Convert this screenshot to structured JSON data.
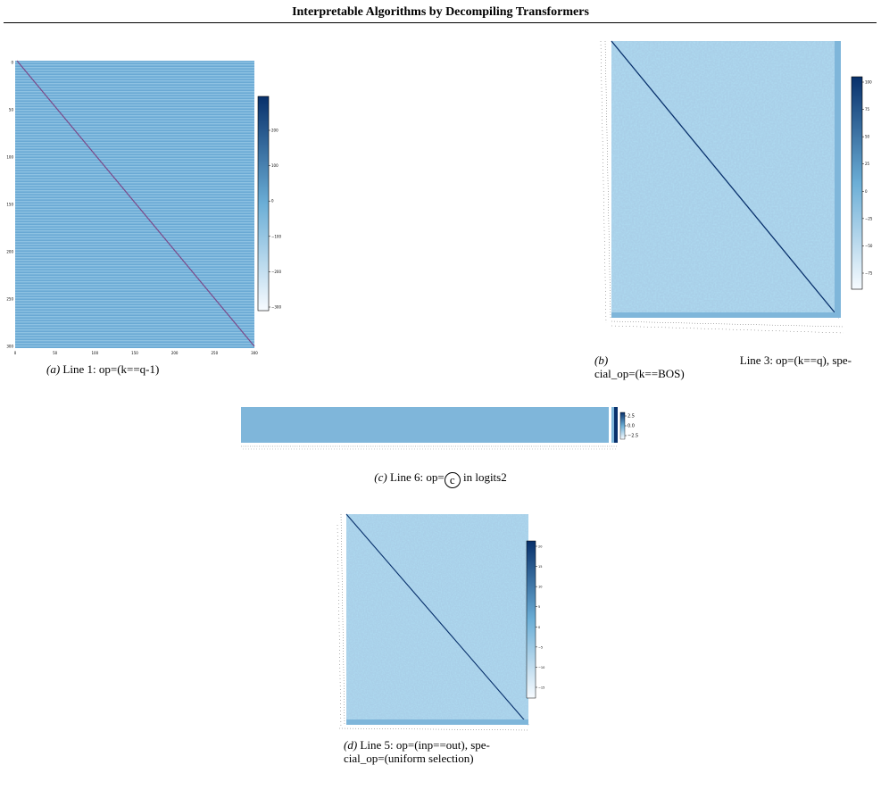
{
  "header": {
    "title": "Interpretable Algorithms by Decompiling Transformers"
  },
  "figures": {
    "a": {
      "caption_label": "(a)",
      "caption_text": "Line 1: op=(k==q-1)",
      "colorbar_ticks": [
        "200",
        "100",
        "0",
        "−100",
        "−200",
        "−300"
      ],
      "y_ticks": [
        "0",
        "50",
        "100",
        "150",
        "200",
        "250",
        "300"
      ],
      "x_ticks": [
        "0",
        "50",
        "100",
        "150",
        "200",
        "250",
        "300"
      ]
    },
    "b": {
      "caption_label": "(b)",
      "caption_line1": "Line 3: op=(k==q), spe-",
      "caption_line2": "cial_op=(k==BOS)",
      "colorbar_ticks": [
        "100",
        "75",
        "50",
        "25",
        "0",
        "−25",
        "−50",
        "−75"
      ]
    },
    "c": {
      "caption_label": "(c)",
      "caption_pre": "Line 6: op=",
      "caption_circled": "c",
      "caption_post": "in logits2",
      "colorbar_ticks": [
        "2.5",
        "0.0",
        "−2.5"
      ]
    },
    "d": {
      "caption_label": "(d)",
      "caption_line1": "Line 5: op=(inp==out), spe-",
      "caption_line2": "cial_op=(uniform selection)",
      "colorbar_ticks": [
        "20",
        "15",
        "10",
        "5",
        "0",
        "−5",
        "−10",
        "−15"
      ]
    }
  },
  "colors": {
    "base": "#78b4d9",
    "light": "#a9cfe8",
    "dark": "#08306b",
    "diag_a": "#7b4a8a"
  }
}
